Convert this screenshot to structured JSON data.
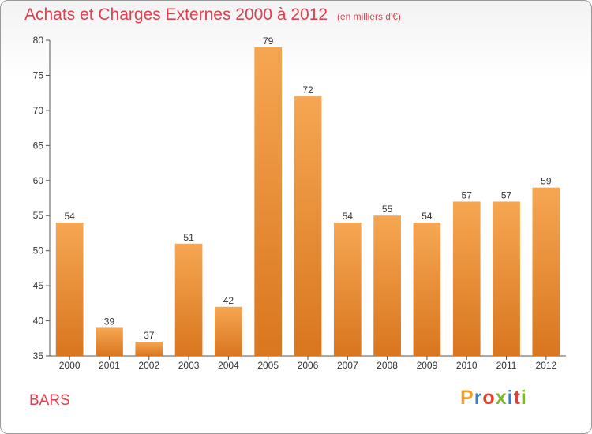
{
  "chart_data": {
    "type": "bar",
    "title": "Achats et Charges Externes 2000 à 2012",
    "unit": "(en milliers d'€)",
    "categories": [
      "2000",
      "2001",
      "2002",
      "2003",
      "2004",
      "2005",
      "2006",
      "2007",
      "2008",
      "2009",
      "2010",
      "2011",
      "2012"
    ],
    "values": [
      54,
      39,
      37,
      51,
      42,
      79,
      72,
      54,
      55,
      54,
      57,
      57,
      59
    ],
    "ylim": [
      35,
      80
    ],
    "yticks": [
      35,
      40,
      45,
      50,
      55,
      60,
      65,
      70,
      75,
      80
    ],
    "grid": false,
    "legend": "none",
    "bar_color_top": "#f6a652",
    "bar_color_bottom": "#d9761f"
  },
  "commune": "BARS",
  "logo": {
    "text": "Proxiti",
    "colors": [
      "#f2a11e",
      "#3d7ec8",
      "#e0402f",
      "#79b82f",
      "#3d7ec8",
      "#e0402f",
      "#79b82f"
    ]
  }
}
